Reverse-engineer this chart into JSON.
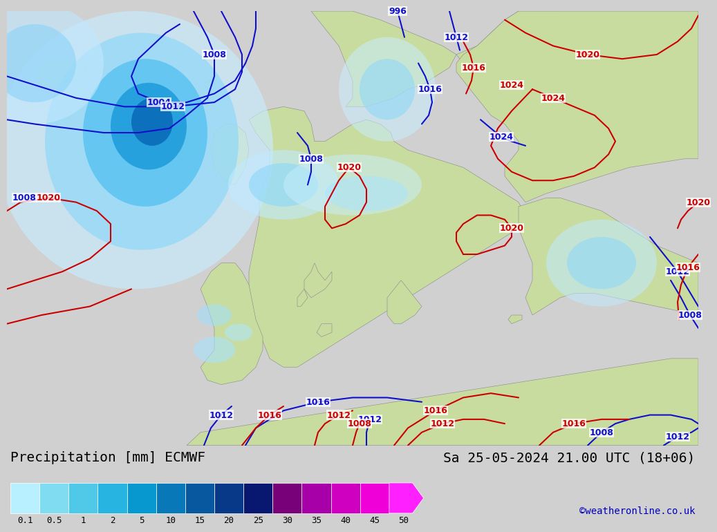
{
  "title_left": "Precipitation [mm] ECMWF",
  "title_right": "Sa 25-05-2024 21.00 UTC (18+06)",
  "credit": "©weatheronline.co.uk",
  "colorbar_levels": [
    "0.1",
    "0.5",
    "1",
    "2",
    "5",
    "10",
    "15",
    "20",
    "25",
    "30",
    "35",
    "40",
    "45",
    "50"
  ],
  "colorbar_colors": [
    "#b8f0ff",
    "#80dcf0",
    "#50c8e8",
    "#28b4e0",
    "#0898d0",
    "#0878b8",
    "#0858a0",
    "#083888",
    "#081870",
    "#780078",
    "#a800a8",
    "#d000c0",
    "#f000d8",
    "#ff20ff"
  ],
  "ocean_color": "#d8d8dc",
  "land_color": "#c8dca0",
  "precip_very_light": "#d0f0ff",
  "precip_light": "#a0e0f8",
  "precip_mid": "#60c8f0",
  "precip_blue": "#2090d0",
  "isobar_blue": "#1010cc",
  "isobar_red": "#cc0000",
  "fig_bg": "#d0d0d0",
  "bar_bg": "#e0e0e0",
  "figure_width": 10.0,
  "figure_height": 7.33,
  "font_size_title": 14,
  "font_size_credit": 10,
  "font_size_isobar": 9,
  "font_size_tick": 10
}
